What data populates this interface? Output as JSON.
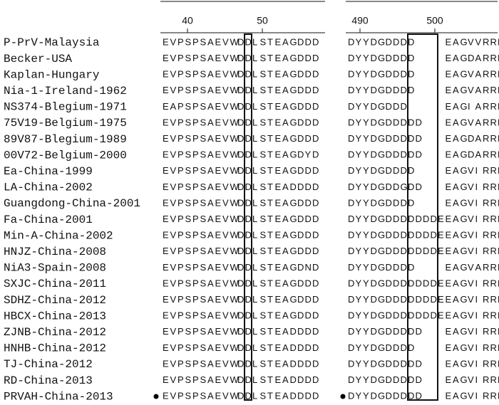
{
  "ruler": {
    "block1_ticks": [
      40,
      50
    ],
    "block2_ticks": [
      490,
      500
    ]
  },
  "rows": [
    {
      "name": "P-PrV-Malaysia",
      "seq1": "EVPSPSAEVWDDLSTEAGDDD",
      "seq2": "DYYDGDDDD    EAGVVRRR"
    },
    {
      "name": "Becker-USA",
      "seq1": "EVPSPSAEVWDDLSTEAGDDD",
      "seq2": "DYYDGDDDD    EAGDARRR"
    },
    {
      "name": "Kaplan-Hungary",
      "seq1": "EVPSPSAEVWDDLSTEAGDDD",
      "seq2": "DYYDGDDDD    EAGVARRR"
    },
    {
      "name": "Nia-1-Ireland-1962",
      "seq1": "EVPSPSAEVWDDLSTEAGDDD",
      "seq2": "DYYDGDDDD    EAGVARRR"
    },
    {
      "name": "NS374-Blegium-1971",
      "seq1": "EAPSPSAEVWDDLSTEAGDDD",
      "seq2": "DYYDGDDD     EAGIARRR"
    },
    {
      "name": "75V19-Belgium-1975",
      "seq1": "EVPSPSAEVWDDLSTEAGDDD",
      "seq2": "DYYDGDDDDD   EAGVARRR"
    },
    {
      "name": "89V87-Blegium-1989",
      "seq1": "EVPSPSAEVWDDLSTEAGDDD",
      "seq2": "DYYDGDDDDD   EAGDARRR"
    },
    {
      "name": "00V72-Belgium-2000",
      "seq1": "EVPSPSAEVWDDLSTEAGDYD",
      "seq2": "DYYDGDDDDD   EAGDARRR"
    },
    {
      "name": "Ea-China-1999",
      "seq1": "EVPSPSAEVWDDLSTEAGDDD",
      "seq2": "DYYDGDDDD    EAGVIRRR"
    },
    {
      "name": "LA-China-2002",
      "seq1": "EVPSPSAEVWDDLSTEADDDD",
      "seq2": "DYYDGDDGDD   EAGVIRRR"
    },
    {
      "name": "Guangdong-China-2001",
      "seq1": "EVPSPSAEVWDDLSTEAGDDD",
      "seq2": "DYYDGDDDD    EAGVIRRR"
    },
    {
      "name": "Fa-China-2001",
      "seq1": "EVPSPSAEVWDDLSTEAGDDD",
      "seq2": "DYYDGDDDDDDDEEAGVIRRR"
    },
    {
      "name": "Min-A-China-2002",
      "seq1": "EVPSPSAEVWDDLSTEAGDDD",
      "seq2": "DYYDGDDDDDDDEEAGVIRRR"
    },
    {
      "name": "HNJZ-China-2008",
      "seq1": "EVPSPSAEVWDDLSTEAGDDD",
      "seq2": "DYYDGDDDDDDDEEAGVIRRR"
    },
    {
      "name": "NiA3-Spain-2008",
      "seq1": "EVPSPSAEVWDDLSTEAGDND",
      "seq2": "DYYDGDDDD    EAGVARRR"
    },
    {
      "name": "SXJC-China-2011",
      "seq1": "EVPSPSAEVWDDLSTEAGDDD",
      "seq2": "DYYDGDDDDDDDEEAGVIRRR"
    },
    {
      "name": "SDHZ-China-2012",
      "seq1": "EVPSPSAEVWDDLSTEAGDDD",
      "seq2": "DYYDGDDDDDDDEEAGVIRRR"
    },
    {
      "name": "HBCX-China-2013",
      "seq1": "EVPSPSAEVWDDLSTEAGDDD",
      "seq2": "DYYDGDDDDDDDEEAGVIRRR"
    },
    {
      "name": "ZJNB-China-2012",
      "seq1": "EVPSPSAEVWDDLSTEADDDD",
      "seq2": "DYYDGDDDDD   EAGVIRRR"
    },
    {
      "name": "HNHB-China-2012",
      "seq1": "EVPSPSAEVWDDLSTEADDDD",
      "seq2": "DYYDGDDDD    EAGVIRRR"
    },
    {
      "name": "TJ-China-2012",
      "seq1": "EVPSPSAEVWDDLSTEADDDD",
      "seq2": "DYYDGDDDDD   EAGVIRRR"
    },
    {
      "name": "RD-China-2013",
      "seq1": "EVPSPSAEVWDDLSTEADDDD",
      "seq2": "DYYDGDDDDD   EAGVIRRR"
    },
    {
      "name": "PRVAH-China-2013",
      "seq1": "EVPSPSAEVWDDLSTEADDDD",
      "seq2": "DYYDGDDDDD   EAGVIRRR"
    }
  ]
}
